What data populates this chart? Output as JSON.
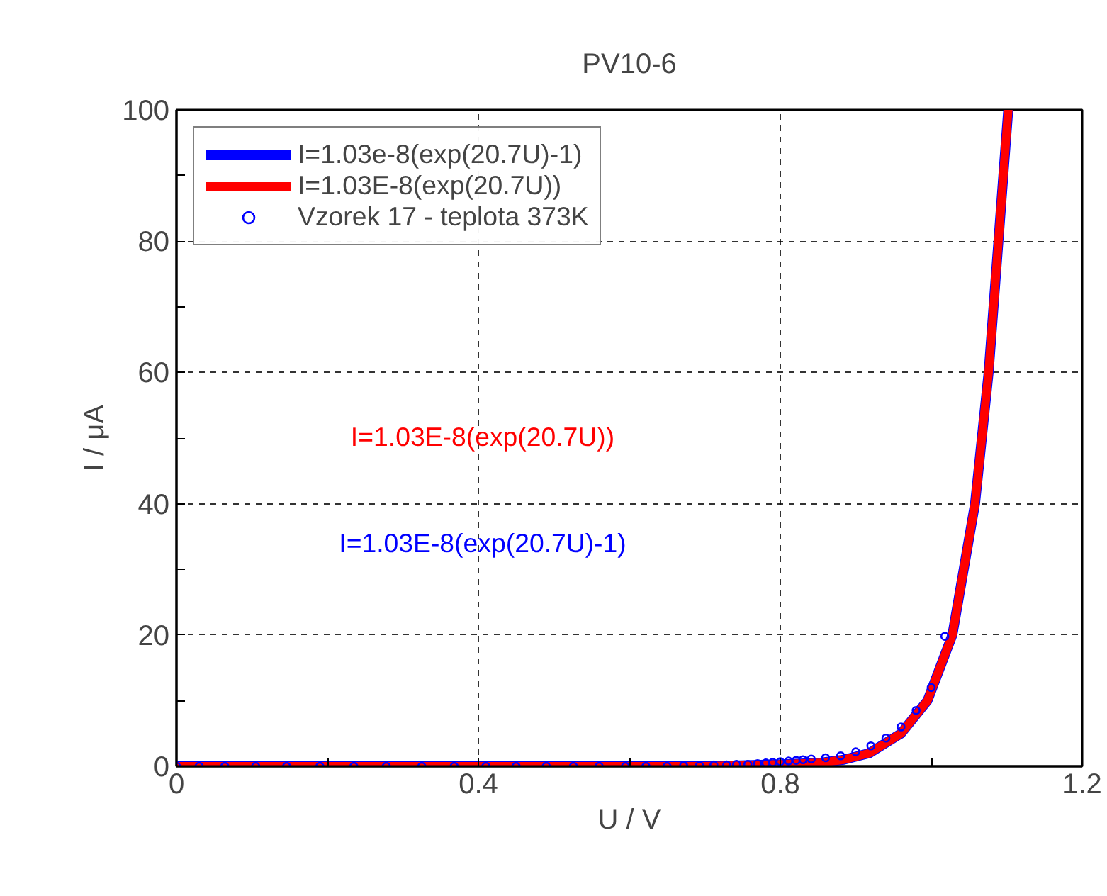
{
  "chart_data": {
    "type": "line",
    "title": "PV10-6",
    "xlabel": "U / V",
    "ylabel": "I / μA",
    "xlim": [
      0,
      1.2
    ],
    "ylim": [
      0,
      100
    ],
    "xticks": [
      0,
      {
        "value": 0.2,
        "label": null
      },
      0.4,
      {
        "value": 0.6,
        "label": null
      },
      0.8,
      {
        "value": 1.0,
        "label": null
      },
      1.2
    ],
    "yticks": [
      0,
      {
        "value": 10,
        "label": null
      },
      20,
      {
        "value": 30,
        "label": null
      },
      40,
      {
        "value": 50,
        "label": null
      },
      60,
      {
        "value": 70,
        "label": null
      },
      80,
      {
        "value": 90,
        "label": null
      },
      100
    ],
    "grid": true,
    "legend": "top left",
    "series": [
      {
        "name": "I=1.03e-8(exp(20.7U)-1)",
        "color": "#0000ff",
        "x": [
          0,
          0.7,
          0.8,
          0.85,
          0.884,
          0.918,
          0.96,
          0.995,
          1.028,
          1.058,
          1.076,
          1.089,
          1.102
        ],
        "values": [
          0,
          0,
          0.3,
          0.5,
          1,
          2,
          5,
          10,
          20,
          40,
          60,
          80,
          100
        ]
      },
      {
        "name": "I=1.03E-8(exp(20.7U))",
        "color": "#ff0000",
        "x": [
          0,
          0.7,
          0.8,
          0.85,
          0.884,
          0.918,
          0.96,
          0.995,
          1.028,
          1.058,
          1.076,
          1.089,
          1.102
        ],
        "values": [
          0,
          0,
          0.3,
          0.5,
          1,
          2,
          5,
          10,
          20,
          40,
          60,
          80,
          100
        ]
      },
      {
        "name": "Vzorek 17 - teplota 373K",
        "color": "#0000ff",
        "type": "scatter",
        "marker": "circle",
        "x": [
          0,
          0.03,
          0.064,
          0.105,
          0.146,
          0.19,
          0.235,
          0.278,
          0.325,
          0.368,
          0.41,
          0.45,
          0.49,
          0.526,
          0.56,
          0.595,
          0.622,
          0.65,
          0.672,
          0.693,
          0.712,
          0.729,
          0.742,
          0.757,
          0.77,
          0.781,
          0.79,
          0.8,
          0.811,
          0.821,
          0.83,
          0.841,
          0.86,
          0.88,
          0.9,
          0.92,
          0.94,
          0.96,
          0.98,
          1.0,
          1.018
        ],
        "values": [
          0,
          0,
          0,
          0,
          0,
          0,
          0,
          0,
          0,
          0,
          0,
          0,
          0,
          0,
          0,
          0,
          0,
          0,
          0.1,
          0.1,
          0.2,
          0.2,
          0.3,
          0.3,
          0.4,
          0.5,
          0.6,
          0.7,
          0.8,
          0.9,
          1.0,
          1.1,
          1.3,
          1.6,
          2.2,
          3.1,
          4.3,
          6,
          8.5,
          12,
          19.8
        ]
      }
    ],
    "annotations": [
      "I=1.03E-8(exp(20.7U))",
      "I=1.03E-8(exp(20.7U)-1)"
    ]
  }
}
